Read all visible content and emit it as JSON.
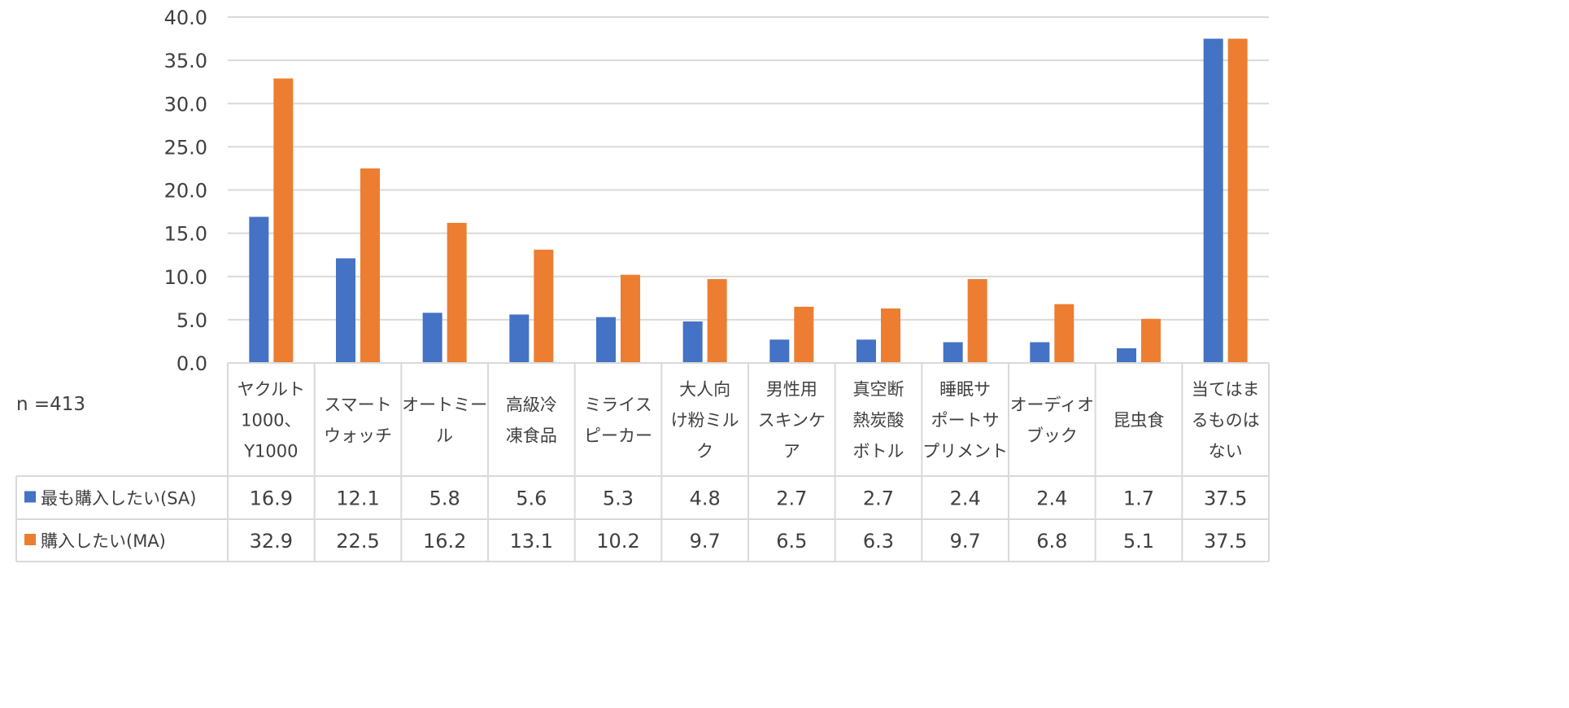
{
  "sample_size_label": "n =413",
  "chart_data": {
    "type": "bar",
    "title": "",
    "xlabel": "",
    "ylabel": "",
    "ylim": [
      0,
      40
    ],
    "yticks": [
      "0.0",
      "5.0",
      "10.0",
      "15.0",
      "20.0",
      "25.0",
      "30.0",
      "35.0",
      "40.0"
    ],
    "grid": true,
    "legend": "data-table-left",
    "categories": [
      "ヤクルト\n1000、\nY1000",
      "スマート\nウォッチ",
      "オートミー\nル",
      "高級冷\n凍食品",
      "ミライス\nピーカー",
      "大人向\nけ粉ミル\nク",
      "男性用\nスキンケ\nア",
      "真空断\n熱炭酸\nボトル",
      "睡眠サ\nポートサ\nプリメント",
      "オーディオ\nブック",
      "昆虫食",
      "当てはま\nるものは\nない"
    ],
    "series": [
      {
        "name": "最も購入したい(SA)",
        "color": "#4472C4",
        "values": [
          16.9,
          12.1,
          5.8,
          5.6,
          5.3,
          4.8,
          2.7,
          2.7,
          2.4,
          2.4,
          1.7,
          37.5
        ]
      },
      {
        "name": "購入したい(MA)",
        "color": "#ED7D31",
        "values": [
          32.9,
          22.5,
          16.2,
          13.1,
          10.2,
          9.7,
          6.5,
          6.3,
          9.7,
          6.8,
          5.1,
          37.5
        ]
      }
    ]
  }
}
